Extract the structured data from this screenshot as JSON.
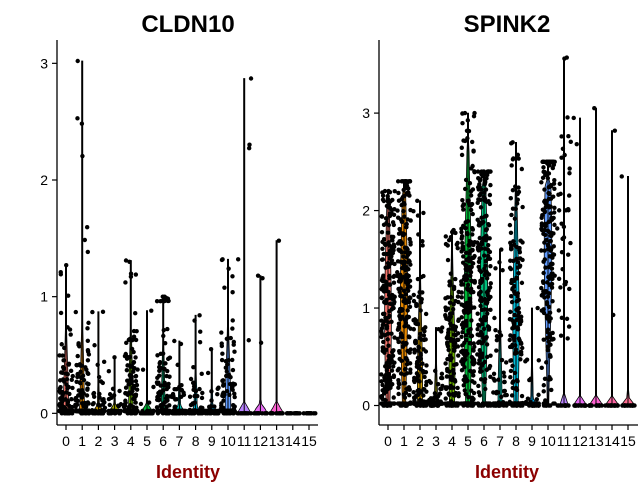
{
  "chart_data": [
    {
      "type": "violin",
      "title": "CLDN10",
      "xlabel": "Identity",
      "ylabel": "",
      "categories": [
        "0",
        "1",
        "2",
        "3",
        "4",
        "5",
        "6",
        "7",
        "8",
        "9",
        "10",
        "11",
        "12",
        "13",
        "14",
        "15"
      ],
      "yticks": [
        0,
        1,
        2,
        3
      ],
      "ylim": [
        -0.1,
        3.2
      ],
      "series": [
        {
          "category": "0",
          "max": 1.27,
          "median": 0.0,
          "zero_frac": 0.35,
          "dense_max": 1.0,
          "n": 130
        },
        {
          "category": "1",
          "max": 3.02,
          "median": 0.0,
          "zero_frac": 0.45,
          "dense_max": 1.1,
          "n": 150
        },
        {
          "category": "2",
          "max": 0.87,
          "median": 0.0,
          "zero_frac": 0.75,
          "dense_max": 0.55,
          "n": 45
        },
        {
          "category": "3",
          "max": 0.48,
          "median": 0.0,
          "zero_frac": 0.8,
          "dense_max": 0.45,
          "n": 30
        },
        {
          "category": "4",
          "max": 1.31,
          "median": 0.0,
          "zero_frac": 0.45,
          "dense_max": 1.05,
          "n": 130
        },
        {
          "category": "5",
          "max": 0.88,
          "median": 0.0,
          "zero_frac": 0.85,
          "dense_max": 0.5,
          "n": 12
        },
        {
          "category": "6",
          "max": 1.0,
          "median": 0.0,
          "zero_frac": 0.55,
          "dense_max": 0.95,
          "n": 120
        },
        {
          "category": "7",
          "max": 0.62,
          "median": 0.0,
          "zero_frac": 0.7,
          "dense_max": 0.5,
          "n": 50
        },
        {
          "category": "8",
          "max": 0.84,
          "median": 0.0,
          "zero_frac": 0.6,
          "dense_max": 0.55,
          "n": 55
        },
        {
          "category": "9",
          "max": 0.55,
          "median": 0.0,
          "zero_frac": 0.75,
          "dense_max": 0.5,
          "n": 30
        },
        {
          "category": "10",
          "max": 1.32,
          "median": 0.0,
          "zero_frac": 0.3,
          "dense_max": 1.0,
          "n": 110
        },
        {
          "category": "11",
          "max": 2.87,
          "median": 0.0,
          "zero_frac": 0.95,
          "dense_max": 0.0,
          "n": 5
        },
        {
          "category": "12",
          "max": 1.18,
          "median": 0.0,
          "zero_frac": 0.97,
          "dense_max": 0.0,
          "n": 3
        },
        {
          "category": "13",
          "max": 1.48,
          "median": 0.0,
          "zero_frac": 0.98,
          "dense_max": 0.0,
          "n": 1
        },
        {
          "category": "14",
          "max": 0.0,
          "median": 0.0,
          "zero_frac": 1.0,
          "dense_max": 0.0,
          "n": 0
        },
        {
          "category": "15",
          "max": 0.0,
          "median": 0.0,
          "zero_frac": 1.0,
          "dense_max": 0.0,
          "n": 0
        }
      ]
    },
    {
      "type": "violin",
      "title": "SPINK2",
      "xlabel": "Identity",
      "ylabel": "",
      "categories": [
        "0",
        "1",
        "2",
        "3",
        "4",
        "5",
        "6",
        "7",
        "8",
        "9",
        "10",
        "11",
        "12",
        "13",
        "14",
        "15"
      ],
      "yticks": [
        0,
        1,
        2,
        3
      ],
      "ylim": [
        -0.2,
        3.75
      ],
      "series": [
        {
          "category": "0",
          "max": 2.2,
          "median": 0.9,
          "zero_frac": 0.15,
          "dense_max": 2.0,
          "n": 220
        },
        {
          "category": "1",
          "max": 2.3,
          "median": 1.1,
          "zero_frac": 0.1,
          "dense_max": 2.1,
          "n": 220
        },
        {
          "category": "2",
          "max": 2.1,
          "median": 0.2,
          "zero_frac": 0.35,
          "dense_max": 1.6,
          "n": 150
        },
        {
          "category": "3",
          "max": 0.8,
          "median": 0.0,
          "zero_frac": 0.6,
          "dense_max": 0.7,
          "n": 60
        },
        {
          "category": "4",
          "max": 1.8,
          "median": 0.4,
          "zero_frac": 0.25,
          "dense_max": 1.6,
          "n": 150
        },
        {
          "category": "5",
          "max": 3.0,
          "median": 1.0,
          "zero_frac": 0.05,
          "dense_max": 2.5,
          "n": 230
        },
        {
          "category": "6",
          "max": 2.4,
          "median": 1.2,
          "zero_frac": 0.08,
          "dense_max": 2.2,
          "n": 200
        },
        {
          "category": "7",
          "max": 1.6,
          "median": 0.0,
          "zero_frac": 0.5,
          "dense_max": 1.3,
          "n": 60
        },
        {
          "category": "8",
          "max": 2.7,
          "median": 0.8,
          "zero_frac": 0.2,
          "dense_max": 2.1,
          "n": 170
        },
        {
          "category": "9",
          "max": 1.0,
          "median": 0.0,
          "zero_frac": 0.7,
          "dense_max": 0.8,
          "n": 25
        },
        {
          "category": "10",
          "max": 2.5,
          "median": 1.6,
          "zero_frac": 0.05,
          "dense_max": 2.2,
          "n": 190
        },
        {
          "category": "11",
          "max": 3.57,
          "median": 0.0,
          "zero_frac": 0.6,
          "dense_max": 0.0,
          "n": 40
        },
        {
          "category": "12",
          "max": 2.95,
          "median": 0.0,
          "zero_frac": 0.95,
          "dense_max": 0.0,
          "n": 2
        },
        {
          "category": "13",
          "max": 3.05,
          "median": 0.0,
          "zero_frac": 0.97,
          "dense_max": 0.0,
          "n": 1
        },
        {
          "category": "14",
          "max": 2.82,
          "median": 0.0,
          "zero_frac": 0.97,
          "dense_max": 0.0,
          "n": 2
        },
        {
          "category": "15",
          "max": 2.35,
          "median": 0.0,
          "zero_frac": 0.98,
          "dense_max": 0.0,
          "n": 1
        }
      ]
    }
  ],
  "palette": [
    "#F8766D",
    "#E58700",
    "#C99800",
    "#A3A500",
    "#6BB100",
    "#00BA38",
    "#00BF7D",
    "#00C0AF",
    "#00BCD8",
    "#00B0F6",
    "#619CFF",
    "#B983FF",
    "#E76BF3",
    "#FD61D1",
    "#FF67A4",
    "#FF6C91"
  ],
  "xlabel_color": "#8B0000"
}
